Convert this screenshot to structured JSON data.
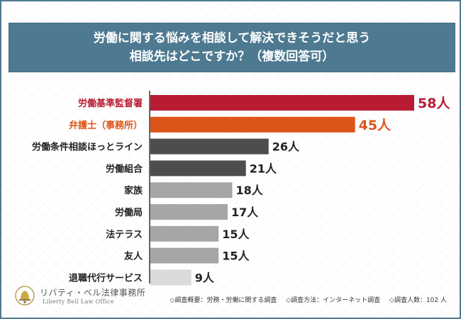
{
  "title": {
    "line1": "労働に関する悩みを相談して解決できそうだと思う",
    "line2": "相談先はどこですか？（複数回答可）"
  },
  "chart_data": {
    "type": "bar",
    "orientation": "horizontal",
    "categories": [
      "労働基準監督署",
      "弁護士（事務所）",
      "労働条件相談ほっとライン",
      "労働組合",
      "家族",
      "労働局",
      "法テラス",
      "友人",
      "退職代行サービス"
    ],
    "values": [
      58,
      45,
      26,
      21,
      18,
      17,
      15,
      15,
      9
    ],
    "value_labels": [
      "58人",
      "45人",
      "26人",
      "21人",
      "18人",
      "17人",
      "15人",
      "15人",
      "9人"
    ],
    "unit": "人",
    "bar_colors": [
      "#b81c33",
      "#dd5419",
      "#4d4d4d",
      "#4d4d4d",
      "#a6a6a6",
      "#a6a6a6",
      "#a6a6a6",
      "#a6a6a6",
      "#dadada"
    ],
    "label_colors": [
      "#b81c33",
      "#dd5419",
      "#222222",
      "#222222",
      "#222222",
      "#222222",
      "#222222",
      "#222222",
      "#222222"
    ],
    "xlim": [
      0,
      58
    ],
    "grid": false,
    "legend": "none"
  },
  "footer": {
    "firm_name": "リバティ・ベル法律事務所",
    "firm_name_en": "Liberty Bell Law Office",
    "survey_outline": "◇調査概要：労務・労働に関する調査",
    "survey_method": "◇調査方法：インターネット調査",
    "respondents": "◇調査人数：102 人"
  },
  "colors": {
    "title_band": "#4e7a91",
    "frame": "#4e7a91"
  }
}
